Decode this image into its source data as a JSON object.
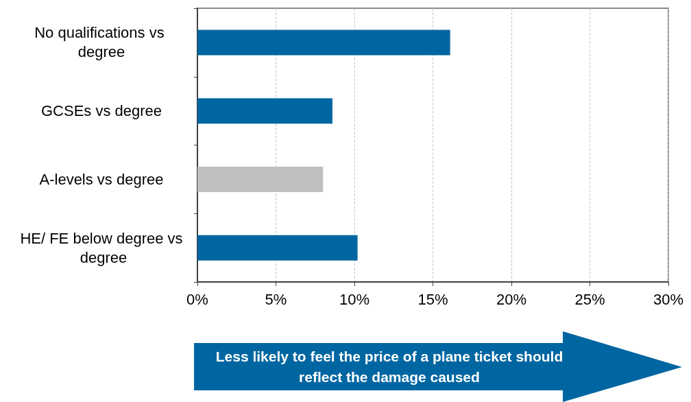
{
  "chart_data": {
    "type": "bar",
    "orientation": "horizontal",
    "categories": [
      "No qualifications vs degree",
      "GCSEs vs degree",
      "A-levels vs degree",
      "HE/ FE below degree vs degree"
    ],
    "values": [
      16.1,
      8.6,
      8.0,
      10.2
    ],
    "colors": [
      "#0066a1",
      "#0066a1",
      "#bfbfbf",
      "#0066a1"
    ],
    "xlim": [
      0,
      30
    ],
    "xticks": [
      {
        "value": 0,
        "label": "0%"
      },
      {
        "value": 5,
        "label": "5%"
      },
      {
        "value": 10,
        "label": "10%"
      },
      {
        "value": 15,
        "label": "15%"
      },
      {
        "value": 20,
        "label": "20%"
      },
      {
        "value": 25,
        "label": "25%"
      },
      {
        "value": 30,
        "label": "30%"
      }
    ],
    "grid": "x",
    "annotations": [
      "Less likely to feel the price of a plane ticket should reflect the damage caused"
    ]
  }
}
